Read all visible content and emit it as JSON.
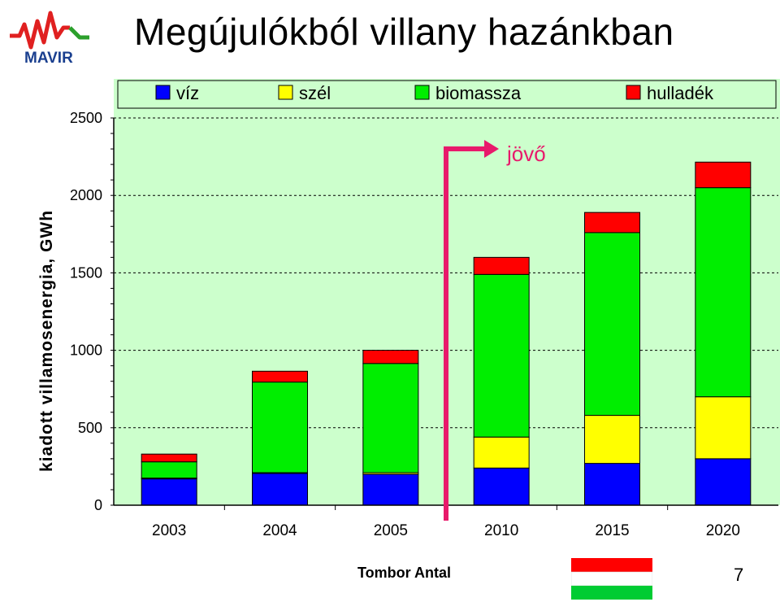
{
  "header": {
    "title": "Megújulókból villany hazánkban",
    "logo_text": "MAVIR"
  },
  "footer": {
    "author": "Tombor Antal",
    "page_number": "7"
  },
  "annotation": {
    "future_label": "jövő"
  },
  "colors": {
    "viz": "#0000ff",
    "szel": "#ffff00",
    "biomassza": "#00ee00",
    "hulladek": "#ff0000",
    "plot_bg": "#ccffcc",
    "arrow": "#e8196b"
  },
  "chart_data": {
    "type": "bar",
    "stacked": true,
    "categories": [
      "2003",
      "2004",
      "2005",
      "2010",
      "2015",
      "2020"
    ],
    "ylabel": "kiadott villamosenergia, GWh",
    "xlabel": "",
    "ylim": [
      0,
      2500
    ],
    "yticks": [
      "0",
      "500",
      "1000",
      "1500",
      "2000",
      "2500"
    ],
    "grid": true,
    "legend_position": "top",
    "series": [
      {
        "name": "víz",
        "values": [
          170,
          205,
          200,
          240,
          270,
          300
        ]
      },
      {
        "name": "szél",
        "values": [
          5,
          5,
          10,
          200,
          310,
          400
        ]
      },
      {
        "name": "biomassza",
        "values": [
          105,
          585,
          705,
          1050,
          1180,
          1350
        ]
      },
      {
        "name": "hulladék",
        "values": [
          50,
          70,
          85,
          110,
          130,
          165
        ]
      }
    ]
  }
}
